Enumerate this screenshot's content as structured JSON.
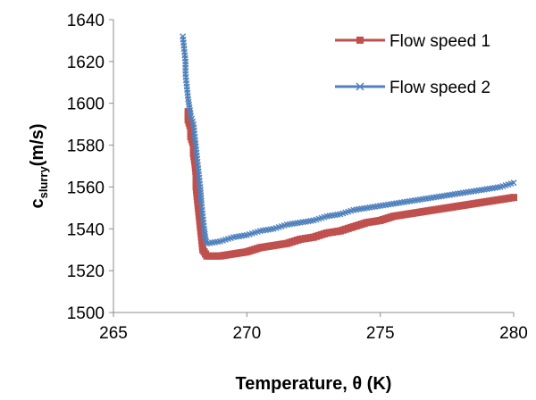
{
  "chart_data": {
    "type": "scatter",
    "title": "",
    "xlabel": "Temperature, θ (K)",
    "ylabel_main": "c",
    "ylabel_sub": "slurry",
    "ylabel_unit": "(m/s)",
    "xlim": [
      265,
      280
    ],
    "ylim": [
      1500,
      1640
    ],
    "xticks": [
      "265",
      "270",
      "275",
      "280"
    ],
    "yticks": [
      "1500",
      "1520",
      "1540",
      "1560",
      "1580",
      "1600",
      "1620",
      "1640"
    ],
    "grid": false,
    "legend_position": "top-right",
    "series": [
      {
        "name": "Flow speed 1",
        "color": "#c0504d",
        "marker": "square",
        "points": [
          [
            267.8,
            1596
          ],
          [
            267.8,
            1592
          ],
          [
            267.9,
            1588
          ],
          [
            267.9,
            1584
          ],
          [
            268.0,
            1580
          ],
          [
            268.0,
            1576
          ],
          [
            268.05,
            1572
          ],
          [
            268.1,
            1566
          ],
          [
            268.1,
            1560
          ],
          [
            268.15,
            1554
          ],
          [
            268.2,
            1548
          ],
          [
            268.25,
            1542
          ],
          [
            268.3,
            1536
          ],
          [
            268.35,
            1530
          ],
          [
            268.5,
            1527
          ],
          [
            269.0,
            1527
          ],
          [
            269.5,
            1528
          ],
          [
            270.0,
            1529
          ],
          [
            270.5,
            1531
          ],
          [
            271.0,
            1532
          ],
          [
            271.5,
            1533
          ],
          [
            272.0,
            1535
          ],
          [
            272.5,
            1536
          ],
          [
            273.0,
            1538
          ],
          [
            273.5,
            1539
          ],
          [
            274.0,
            1541
          ],
          [
            274.5,
            1543
          ],
          [
            275.0,
            1544
          ],
          [
            275.5,
            1546
          ],
          [
            276.0,
            1547
          ],
          [
            276.5,
            1548
          ],
          [
            277.0,
            1549
          ],
          [
            277.5,
            1550
          ],
          [
            278.0,
            1551
          ],
          [
            278.5,
            1552
          ],
          [
            279.0,
            1553
          ],
          [
            279.5,
            1554
          ],
          [
            280.0,
            1555
          ]
        ]
      },
      {
        "name": "Flow speed 2",
        "color": "#4f81bd",
        "marker": "x",
        "points": [
          [
            267.6,
            1632
          ],
          [
            267.65,
            1626
          ],
          [
            267.7,
            1620
          ],
          [
            267.7,
            1614
          ],
          [
            267.75,
            1608
          ],
          [
            267.8,
            1602
          ],
          [
            267.85,
            1598
          ],
          [
            267.9,
            1594
          ],
          [
            268.0,
            1590
          ],
          [
            268.05,
            1584
          ],
          [
            268.1,
            1578
          ],
          [
            268.15,
            1572
          ],
          [
            268.2,
            1566
          ],
          [
            268.25,
            1560
          ],
          [
            268.3,
            1552
          ],
          [
            268.35,
            1546
          ],
          [
            268.4,
            1540
          ],
          [
            268.45,
            1535
          ],
          [
            268.5,
            1533
          ],
          [
            269.0,
            1534
          ],
          [
            269.5,
            1536
          ],
          [
            270.0,
            1537
          ],
          [
            270.5,
            1539
          ],
          [
            271.0,
            1540
          ],
          [
            271.5,
            1542
          ],
          [
            272.0,
            1543
          ],
          [
            272.5,
            1544
          ],
          [
            273.0,
            1546
          ],
          [
            273.5,
            1547
          ],
          [
            274.0,
            1549
          ],
          [
            274.5,
            1550
          ],
          [
            275.0,
            1551
          ],
          [
            275.5,
            1552
          ],
          [
            276.0,
            1553
          ],
          [
            276.5,
            1554
          ],
          [
            277.0,
            1555
          ],
          [
            277.5,
            1556
          ],
          [
            278.0,
            1557
          ],
          [
            278.5,
            1558
          ],
          [
            279.0,
            1559
          ],
          [
            279.5,
            1560
          ],
          [
            280.0,
            1562
          ]
        ]
      }
    ]
  }
}
